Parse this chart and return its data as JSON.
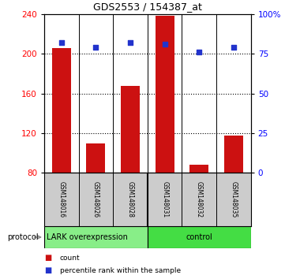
{
  "title": "GDS2553 / 154387_at",
  "samples": [
    "GSM148016",
    "GSM148026",
    "GSM148028",
    "GSM148031",
    "GSM148032",
    "GSM148035"
  ],
  "counts": [
    206,
    110,
    168,
    238,
    88,
    118
  ],
  "percentiles": [
    82,
    79,
    82,
    81,
    76,
    79
  ],
  "ylim_left": [
    80,
    240
  ],
  "ylim_right": [
    0,
    100
  ],
  "yticks_left": [
    80,
    120,
    160,
    200,
    240
  ],
  "yticks_right": [
    0,
    25,
    50,
    75,
    100
  ],
  "ytick_labels_right": [
    "0",
    "25",
    "50",
    "75",
    "100%"
  ],
  "bar_color": "#cc1111",
  "marker_color": "#2233cc",
  "grid_lines": [
    120,
    160,
    200
  ],
  "group_labels": [
    "LARK overexpression",
    "control"
  ],
  "group_colors": [
    "#88ee88",
    "#44dd44"
  ],
  "group_split": 3,
  "protocol_label": "protocol",
  "legend_items": [
    {
      "label": "count",
      "color": "#cc1111"
    },
    {
      "label": "percentile rank within the sample",
      "color": "#2233cc"
    }
  ],
  "sample_box_color": "#cccccc",
  "bar_width": 0.55
}
